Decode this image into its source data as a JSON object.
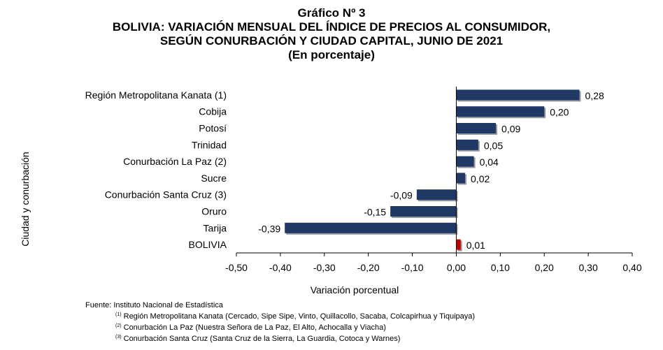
{
  "titles": {
    "line1": "Gráfico Nº 3",
    "line2": "BOLIVIA: VARIACIÓN MENSUAL DEL ÍNDICE DE PRECIOS AL CONSUMIDOR,",
    "line3": "SEGÚN CONURBACIÓN Y CIUDAD CAPITAL, JUNIO DE 2021",
    "line4": "(En porcentaje)"
  },
  "colors": {
    "bar": "#1f3864",
    "highlight": "#c00000"
  },
  "chart_data": {
    "type": "bar",
    "orientation": "horizontal",
    "ylabel": "Ciudad y conurbación",
    "xlabel": "Variación porcentual",
    "xlim": [
      -0.5,
      0.4
    ],
    "x_ticks": [
      -0.5,
      -0.4,
      -0.3,
      -0.2,
      -0.1,
      0.0,
      0.1,
      0.2,
      0.3,
      0.4
    ],
    "x_tick_labels": [
      "-0,50",
      "-0,40",
      "-0,30",
      "-0,20",
      "-0,10",
      "0,00",
      "0,10",
      "0,20",
      "0,30",
      "0,40"
    ],
    "grid": false,
    "categories": [
      "Región Metropolitana Kanata (1)",
      "Cobija",
      "Potosí",
      "Trinidad",
      "Conurbación La Paz (2)",
      "Sucre",
      "Conurbación Santa Cruz (3)",
      "Oruro",
      "Tarija",
      "BOLIVIA"
    ],
    "values": [
      0.28,
      0.2,
      0.09,
      0.05,
      0.04,
      0.02,
      -0.09,
      -0.15,
      -0.39,
      0.01
    ],
    "value_labels": [
      "0,28",
      "0,20",
      "0,09",
      "0,05",
      "0,04",
      "0,02",
      "-0,09",
      "-0,15",
      "-0,39",
      "0,01"
    ],
    "highlight_category": "BOLIVIA"
  },
  "footer": {
    "source": "Fuente: Instituto Nacional de Estadística",
    "notes": [
      {
        "mark": "(1)",
        "text": " Región Metropolitana Kanata (Cercado, Sipe Sipe, Vinto, Quillacollo, Sacaba, Colcapirhua y Tiquipaya)"
      },
      {
        "mark": "(2)",
        "text": "  Conurbación La Paz (Nuestra Señora de La Paz, El Alto, Achocalla y Viacha)"
      },
      {
        "mark": "(3)",
        "text": " Conurbación Santa Cruz (Santa Cruz de la Sierra, La Guardia, Cotoca y Warnes)"
      }
    ]
  }
}
